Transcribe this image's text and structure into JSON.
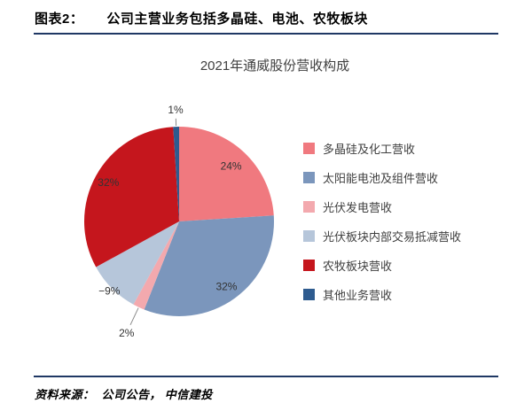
{
  "header": {
    "label": "图表2：",
    "title": "公司主营业务包括多晶硅、电池、农牧板块"
  },
  "chart_data": {
    "type": "pie",
    "title": "2021年通威股份营收构成",
    "legend_position": "right",
    "start_angle": "top",
    "direction": "clockwise",
    "slices": [
      {
        "label": "多晶硅及化工营收",
        "value": 24,
        "display": "24%",
        "color": "#F0797F",
        "label_radius": 0.8
      },
      {
        "label": "太阳能电池及组件营收",
        "value": 32,
        "display": "32%",
        "color": "#7B96BC",
        "label_radius": 0.85
      },
      {
        "label": "光伏发电营收",
        "value": 2,
        "display": "2%",
        "color": "#F3A9AE",
        "label_radius": 1.3
      },
      {
        "label": "光伏板块内部交易抵减营收",
        "value": -9,
        "display": "−9%",
        "color": "#B6C6DA",
        "label_radius": 1.04
      },
      {
        "label": "农牧板块营收",
        "value": 32,
        "display": "32%",
        "color": "#C5161D",
        "label_radius": 0.85
      },
      {
        "label": "其他业务营收",
        "value": 1,
        "display": "1%",
        "color": "#2E5B8F",
        "label_radius": 1.18
      }
    ]
  },
  "footer": {
    "source_label": "资料来源：",
    "source_text": "公司公告， 中信建投"
  },
  "colors": {
    "rule": "#1F3864",
    "title_text": "#404040",
    "slice_label_text": "#333333"
  }
}
